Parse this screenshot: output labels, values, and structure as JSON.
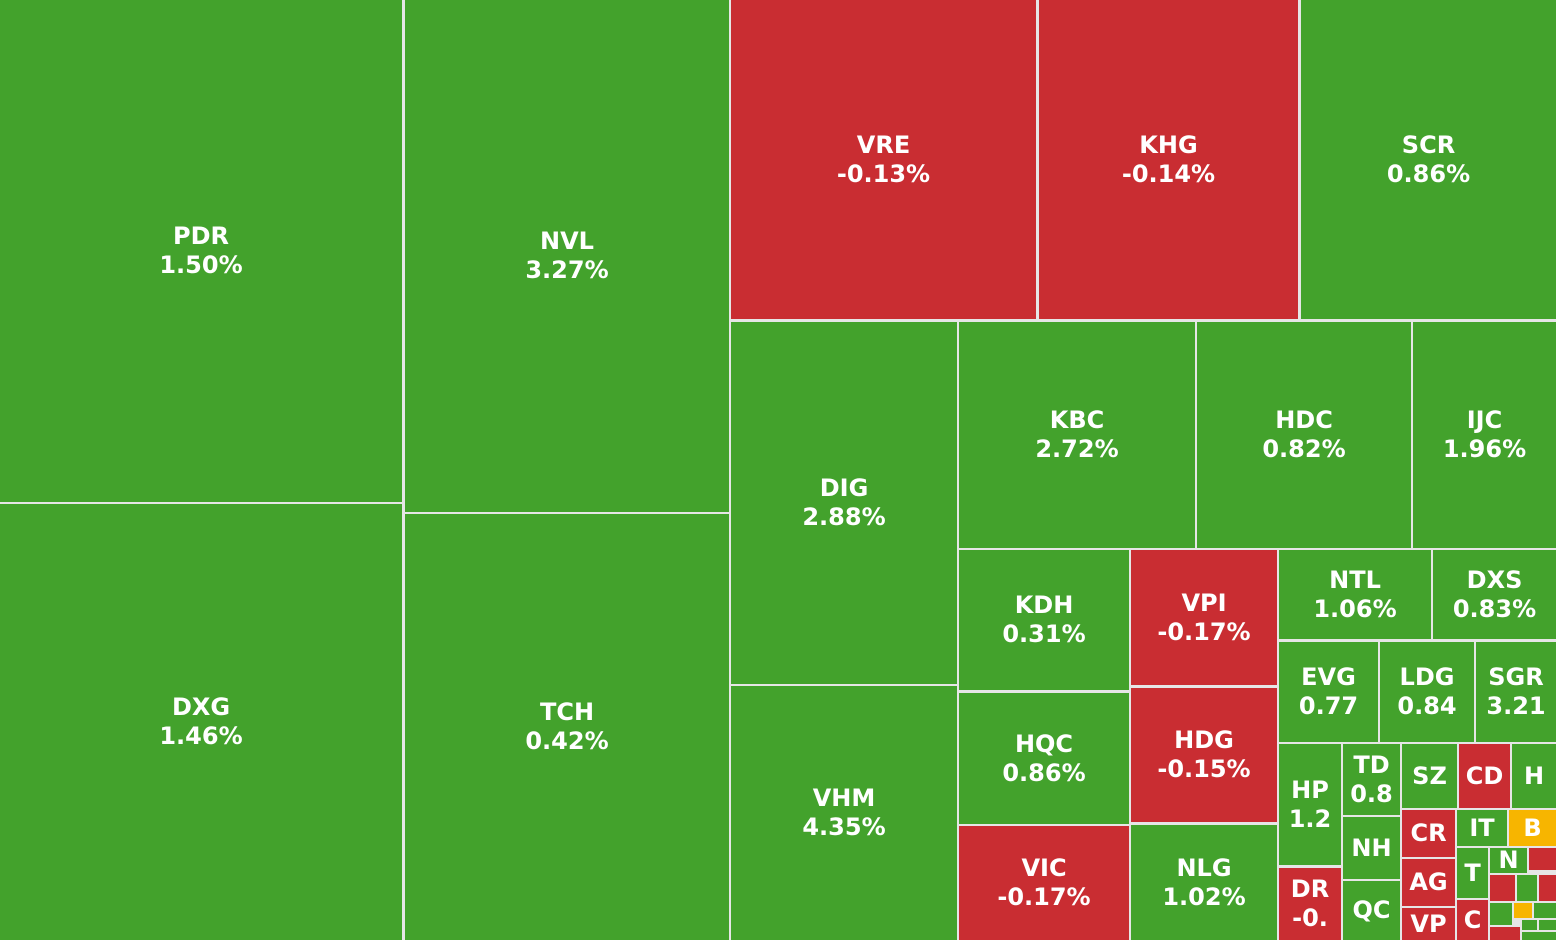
{
  "tiles": [
    {
      "ticker": "PDR",
      "change": "1.50%"
    },
    {
      "ticker": "DXG",
      "change": "1.46%"
    },
    {
      "ticker": "NVL",
      "change": "3.27%"
    },
    {
      "ticker": "TCH",
      "change": "0.42%"
    },
    {
      "ticker": "VRE",
      "change": "-0.13%"
    },
    {
      "ticker": "KHG",
      "change": "-0.14%"
    },
    {
      "ticker": "SCR",
      "change": "0.86%"
    },
    {
      "ticker": "DIG",
      "change": "2.88%"
    },
    {
      "ticker": "VHM",
      "change": "4.35%"
    },
    {
      "ticker": "KBC",
      "change": "2.72%"
    },
    {
      "ticker": "HDC",
      "change": "0.82%"
    },
    {
      "ticker": "IJC",
      "change": "1.96%"
    },
    {
      "ticker": "KDH",
      "change": "0.31%"
    },
    {
      "ticker": "HQC",
      "change": "0.86%"
    },
    {
      "ticker": "VIC",
      "change": "-0.17%"
    },
    {
      "ticker": "VPI",
      "change": "-0.17%"
    },
    {
      "ticker": "HDG",
      "change": "-0.15%"
    },
    {
      "ticker": "NLG",
      "change": "1.02%"
    },
    {
      "ticker": "NTL",
      "change": "1.06%"
    },
    {
      "ticker": "DXS",
      "change": "0.83%"
    },
    {
      "ticker": "EVG",
      "change": "0.77"
    },
    {
      "ticker": "LDG",
      "change": "0.84"
    },
    {
      "ticker": "SGR",
      "change": "3.21"
    },
    {
      "ticker": "HP",
      "change": "1.2"
    },
    {
      "ticker": "DR",
      "change": "-0."
    },
    {
      "ticker": "TD",
      "change": "0.8"
    },
    {
      "ticker": "NH"
    },
    {
      "ticker": "QC"
    },
    {
      "ticker": "SZ"
    },
    {
      "ticker": "CD"
    },
    {
      "ticker": "H"
    },
    {
      "ticker": "CR"
    },
    {
      "ticker": "AG"
    },
    {
      "ticker": "VP"
    },
    {
      "ticker": "IT"
    },
    {
      "ticker": "B"
    },
    {
      "ticker": "T"
    },
    {
      "ticker": "C"
    },
    {
      "ticker": "N"
    }
  ]
}
